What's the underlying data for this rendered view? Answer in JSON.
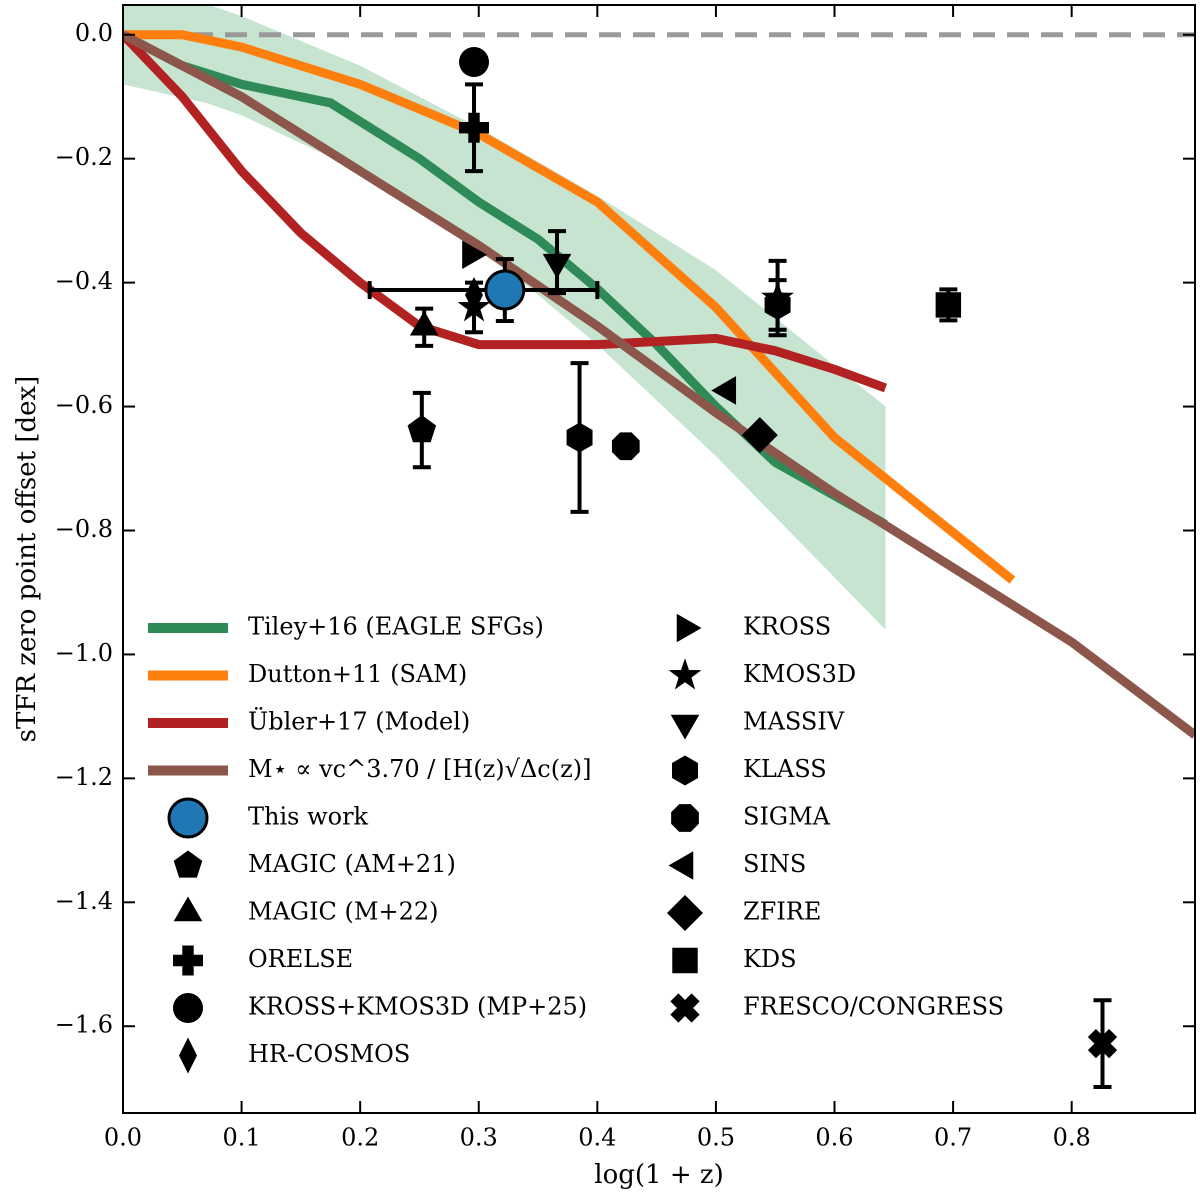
{
  "chart_data": {
    "type": "line",
    "x_label": "log(1 + z)",
    "y_label": "sTFR zero point offset [dex]",
    "xlim": [
      0,
      0.904
    ],
    "ylim": [
      -1.74,
      0.048
    ],
    "xticks": [
      {
        "value": 0,
        "label": "0.0"
      },
      0.1,
      0.2,
      0.3,
      0.4,
      0.5,
      0.6,
      0.7,
      0.8
    ],
    "yticks": [
      {
        "value": 0,
        "label": "0.0"
      },
      {
        "value": -0.2,
        "label": "−0.2"
      },
      {
        "value": -0.4,
        "label": "−0.4"
      },
      {
        "value": -0.6,
        "label": "−0.6"
      },
      {
        "value": -0.8,
        "label": "−0.8"
      },
      {
        "value": -1.0,
        "label": "−1.0"
      },
      {
        "value": -1.2,
        "label": "−1.2"
      },
      {
        "value": -1.4,
        "label": "−1.4"
      },
      {
        "value": -1.6,
        "label": "−1.6"
      }
    ],
    "reference_line": {
      "value": 0,
      "color": "#999999"
    },
    "band": {
      "color": "#a8d5b5",
      "x": [
        0,
        0.07,
        0.1,
        0.2,
        0.3,
        0.4,
        0.5,
        0.643
      ],
      "upper": [
        0.05,
        0.05,
        0.03,
        -0.05,
        -0.15,
        -0.26,
        -0.38,
        -0.6
      ],
      "lower": [
        -0.08,
        -0.11,
        -0.13,
        -0.22,
        -0.34,
        -0.5,
        -0.68,
        -0.96
      ]
    },
    "series": [
      {
        "name": "Tiley+16 (EAGLE SFGs)",
        "color": "#2e8b57",
        "x": [
          0,
          0.05,
          0.1,
          0.175,
          0.25,
          0.3,
          0.35,
          0.4,
          0.45,
          0.5,
          0.55,
          0.643
        ],
        "values": [
          0,
          -0.05,
          -0.08,
          -0.11,
          -0.2,
          -0.27,
          -0.33,
          -0.41,
          -0.5,
          -0.6,
          -0.69,
          -0.79
        ]
      },
      {
        "name": "Dutton+11 (SAM)",
        "color": "#ff7f0e",
        "x": [
          0,
          0.05,
          0.1,
          0.2,
          0.3,
          0.4,
          0.5,
          0.6,
          0.75
        ],
        "values": [
          0,
          0,
          -0.02,
          -0.08,
          -0.16,
          -0.27,
          -0.44,
          -0.65,
          -0.88
        ]
      },
      {
        "name": "Übler+17 (Model)",
        "color": "#b22222",
        "x": [
          0,
          0.05,
          0.1,
          0.15,
          0.2,
          0.25,
          0.3,
          0.4,
          0.5,
          0.55,
          0.6,
          0.643
        ],
        "values": [
          0,
          -0.1,
          -0.22,
          -0.32,
          -0.4,
          -0.47,
          -0.5,
          -0.5,
          -0.49,
          -0.51,
          -0.54,
          -0.57
        ]
      },
      {
        "name": "M⋆ ∝ vc^3.70 / [H(z)√Δc(z)]",
        "color": "#8c564b",
        "x": [
          0,
          0.1,
          0.2,
          0.3,
          0.4,
          0.5,
          0.6,
          0.7,
          0.8,
          0.904
        ],
        "values": [
          0,
          -0.1,
          -0.22,
          -0.34,
          -0.47,
          -0.61,
          -0.74,
          -0.86,
          -0.98,
          -1.13
        ]
      }
    ],
    "points": [
      {
        "name": "This work",
        "marker": "circle-big",
        "color": "#1f77b4",
        "x": [
          0.322
        ],
        "values": [
          -0.412
        ],
        "yerr": [
          0.05
        ],
        "xerr": [
          [
            0.114,
            0.078
          ]
        ]
      },
      {
        "name": "MAGIC (AM+21)",
        "marker": "pentagon",
        "color": "#000000",
        "x": [
          0.252
        ],
        "values": [
          -0.638
        ],
        "yerr": [
          0.06
        ]
      },
      {
        "name": "MAGIC (M+22)",
        "marker": "triangle-up",
        "color": "#000000",
        "x": [
          0.254
        ],
        "values": [
          -0.472
        ],
        "yerr": [
          0.03
        ]
      },
      {
        "name": "ORELSE",
        "marker": "plus",
        "color": "#000000",
        "x": [
          0.296
        ],
        "values": [
          -0.15
        ],
        "yerr": [
          0.07
        ]
      },
      {
        "name": "KROSS+KMOS3D (MP+25)",
        "marker": "circle",
        "color": "#000000",
        "x": [
          0.296
        ],
        "values": [
          -0.044
        ],
        "yerr": [
          null
        ]
      },
      {
        "name": "HR-COSMOS",
        "marker": "thin-diamond",
        "color": "#000000",
        "x": [
          0.296
        ],
        "values": [
          -0.42
        ],
        "yerr": [
          null
        ]
      },
      {
        "name": "KROSS",
        "marker": "triangle-right",
        "color": "#000000",
        "x": [
          0.293
        ],
        "values": [
          -0.355
        ],
        "yerr": [
          null
        ]
      },
      {
        "name": "KMOS3D",
        "marker": "star",
        "color": "#000000",
        "x": [
          0.296,
          0.552
        ],
        "values": [
          -0.44,
          -0.425
        ],
        "yerr": [
          0.04,
          0.06
        ]
      },
      {
        "name": "MASSIV",
        "marker": "triangle-down",
        "color": "#000000",
        "x": [
          0.366
        ],
        "values": [
          -0.367
        ],
        "yerr": [
          0.05
        ]
      },
      {
        "name": "KLASS",
        "marker": "hexagon",
        "color": "#000000",
        "x": [
          0.385,
          0.552
        ],
        "values": [
          -0.65,
          -0.436
        ],
        "yerr": [
          0.12,
          0.04
        ]
      },
      {
        "name": "SIGMA",
        "marker": "octagon",
        "color": "#000000",
        "x": [
          0.424
        ],
        "values": [
          -0.664
        ],
        "yerr": [
          null
        ]
      },
      {
        "name": "SINS",
        "marker": "triangle-left",
        "color": "#000000",
        "x": [
          0.51
        ],
        "values": [
          -0.574
        ],
        "yerr": [
          null
        ]
      },
      {
        "name": "ZFIRE",
        "marker": "diamond",
        "color": "#000000",
        "x": [
          0.537
        ],
        "values": [
          -0.646
        ],
        "yerr": [
          null
        ]
      },
      {
        "name": "KDS",
        "marker": "square",
        "color": "#000000",
        "x": [
          0.696
        ],
        "values": [
          -0.436
        ],
        "yerr": [
          0.025
        ]
      },
      {
        "name": "FRESCO/CONGRESS",
        "marker": "x",
        "color": "#000000",
        "x": [
          0.826
        ],
        "values": [
          -1.628
        ],
        "yerr": [
          0.07
        ]
      }
    ]
  }
}
